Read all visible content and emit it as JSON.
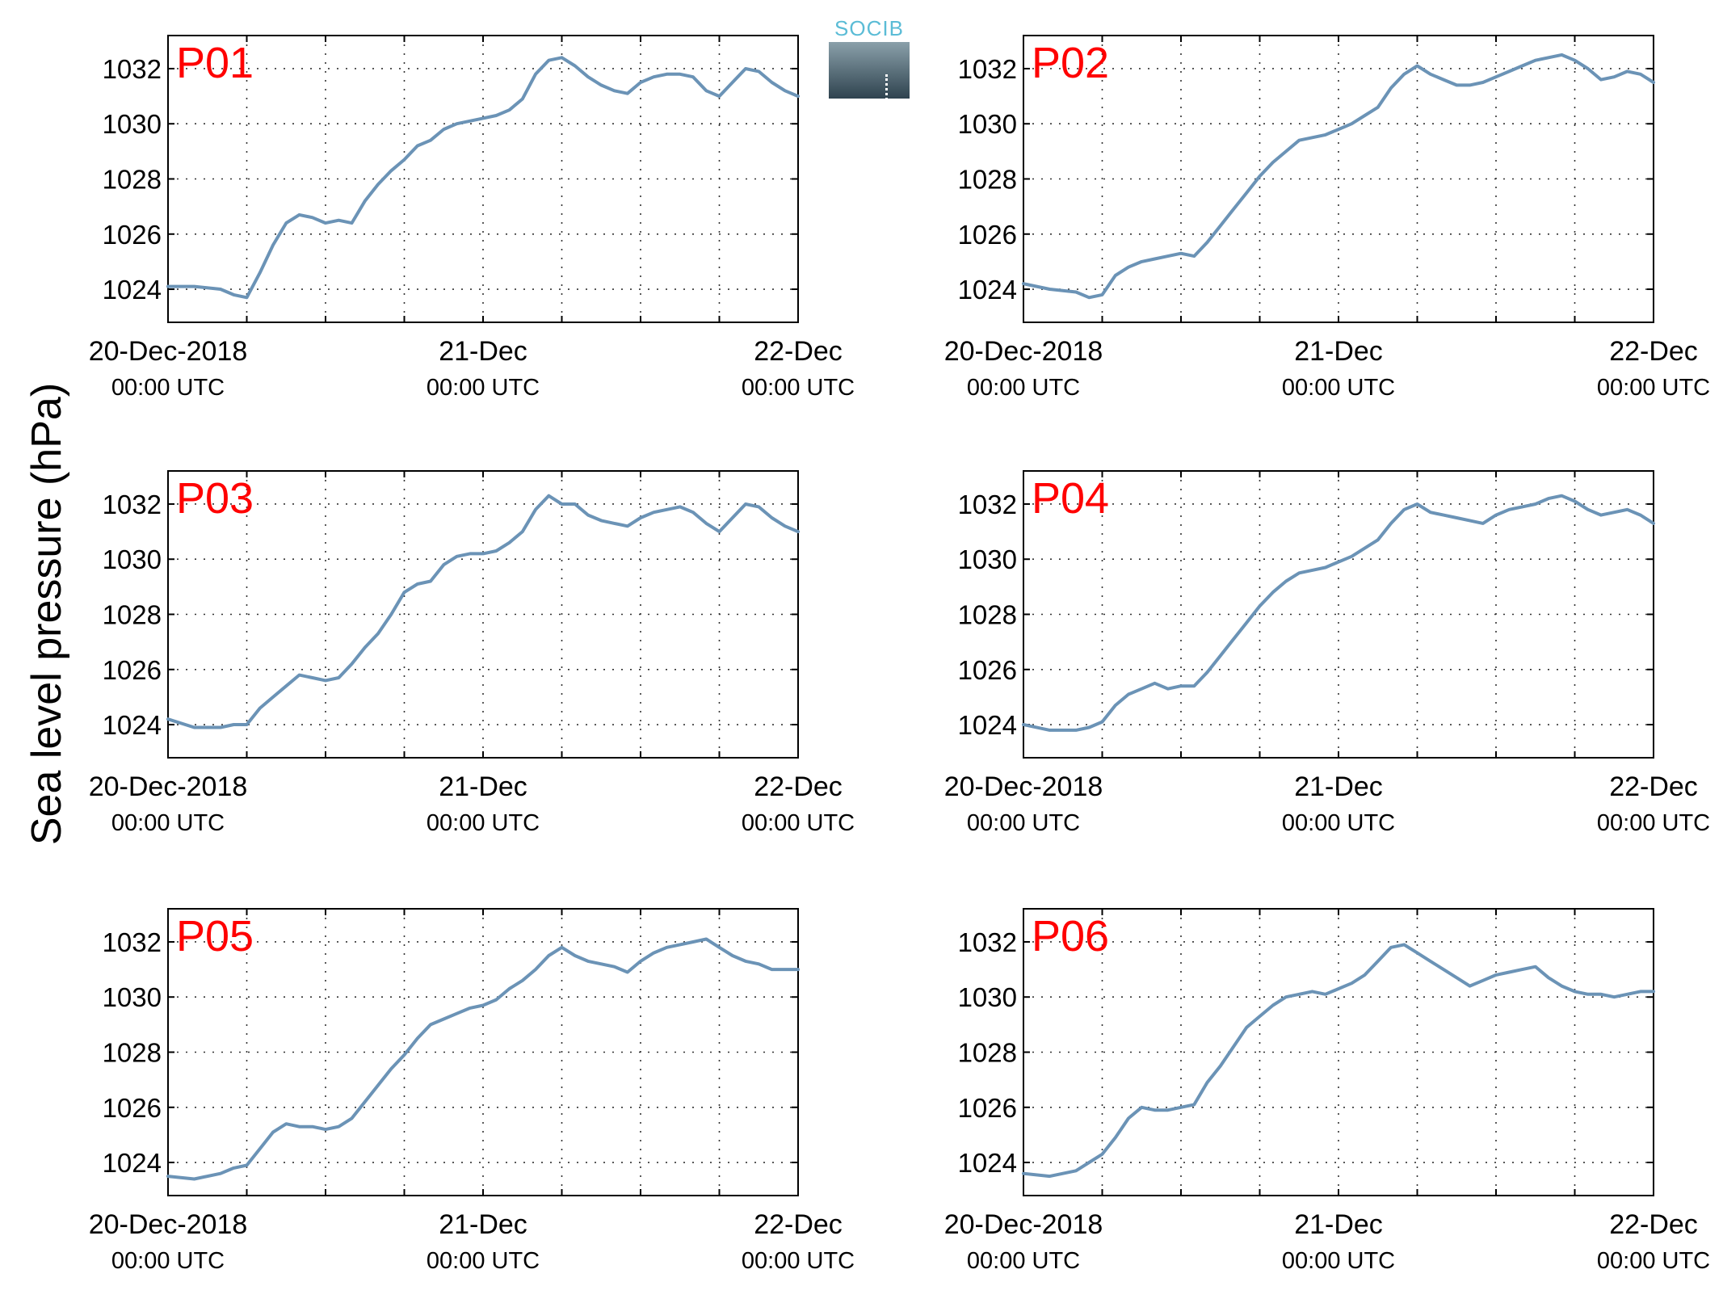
{
  "figure": {
    "ylabel": "Sea level pressure (hPa)",
    "logo_text": "SOCIB",
    "line_color": "#6b93b6",
    "label_color": "#ff0000"
  },
  "chart_data": [
    {
      "type": "line",
      "title": "P01",
      "xlim": [
        0,
        48
      ],
      "ylim": [
        1022.8,
        1033.2
      ],
      "yticks": [
        1024,
        1026,
        1028,
        1030,
        1032
      ],
      "xticklabels": [
        {
          "x": 0,
          "date": "20-Dec-2018",
          "time": "00:00 UTC"
        },
        {
          "x": 24,
          "date": "21-Dec",
          "time": "00:00 UTC"
        },
        {
          "x": 48,
          "date": "22-Dec",
          "time": "00:00 UTC"
        }
      ],
      "grid": true,
      "series": [
        {
          "x": [
            0,
            2,
            4,
            5,
            6,
            7,
            8,
            9,
            10,
            11,
            12,
            13,
            14,
            15,
            16,
            17,
            18,
            19,
            20,
            21,
            22,
            23,
            24,
            25,
            26,
            27,
            28,
            29,
            30,
            31,
            32,
            33,
            34,
            35,
            36,
            37,
            38,
            39,
            40,
            41,
            42,
            43,
            44,
            45,
            46,
            47,
            48
          ],
          "y": [
            1024.1,
            1024.1,
            1024.0,
            1023.8,
            1023.7,
            1024.6,
            1025.6,
            1026.4,
            1026.7,
            1026.6,
            1026.4,
            1026.5,
            1026.4,
            1027.2,
            1027.8,
            1028.3,
            1028.7,
            1029.2,
            1029.4,
            1029.8,
            1030.0,
            1030.1,
            1030.2,
            1030.3,
            1030.5,
            1030.9,
            1031.8,
            1032.3,
            1032.4,
            1032.1,
            1031.7,
            1031.4,
            1031.2,
            1031.1,
            1031.5,
            1031.7,
            1031.8,
            1031.8,
            1031.7,
            1031.2,
            1031.0,
            1031.5,
            1032.0,
            1031.9,
            1031.5,
            1031.2,
            1031.0
          ]
        }
      ]
    },
    {
      "type": "line",
      "title": "P02",
      "xlim": [
        0,
        48
      ],
      "ylim": [
        1022.8,
        1033.2
      ],
      "yticks": [
        1024,
        1026,
        1028,
        1030,
        1032
      ],
      "xticklabels": [
        {
          "x": 0,
          "date": "20-Dec-2018",
          "time": "00:00 UTC"
        },
        {
          "x": 24,
          "date": "21-Dec",
          "time": "00:00 UTC"
        },
        {
          "x": 48,
          "date": "22-Dec",
          "time": "00:00 UTC"
        }
      ],
      "grid": true,
      "series": [
        {
          "x": [
            0,
            2,
            4,
            5,
            6,
            7,
            8,
            9,
            10,
            11,
            12,
            13,
            14,
            15,
            16,
            17,
            18,
            19,
            20,
            21,
            22,
            23,
            24,
            25,
            26,
            27,
            28,
            29,
            30,
            31,
            32,
            33,
            34,
            35,
            36,
            37,
            38,
            39,
            40,
            41,
            42,
            43,
            44,
            45,
            46,
            47,
            48
          ],
          "y": [
            1024.2,
            1024.0,
            1023.9,
            1023.7,
            1023.8,
            1024.5,
            1024.8,
            1025.0,
            1025.1,
            1025.2,
            1025.3,
            1025.2,
            1025.7,
            1026.3,
            1026.9,
            1027.5,
            1028.1,
            1028.6,
            1029.0,
            1029.4,
            1029.5,
            1029.6,
            1029.8,
            1030.0,
            1030.3,
            1030.6,
            1031.3,
            1031.8,
            1032.1,
            1031.8,
            1031.6,
            1031.4,
            1031.4,
            1031.5,
            1031.7,
            1031.9,
            1032.1,
            1032.3,
            1032.4,
            1032.5,
            1032.3,
            1032.0,
            1031.6,
            1031.7,
            1031.9,
            1031.8,
            1031.5
          ]
        }
      ]
    },
    {
      "type": "line",
      "title": "P03",
      "xlim": [
        0,
        48
      ],
      "ylim": [
        1022.8,
        1033.2
      ],
      "yticks": [
        1024,
        1026,
        1028,
        1030,
        1032
      ],
      "xticklabels": [
        {
          "x": 0,
          "date": "20-Dec-2018",
          "time": "00:00 UTC"
        },
        {
          "x": 24,
          "date": "21-Dec",
          "time": "00:00 UTC"
        },
        {
          "x": 48,
          "date": "22-Dec",
          "time": "00:00 UTC"
        }
      ],
      "grid": true,
      "series": [
        {
          "x": [
            0,
            2,
            4,
            5,
            6,
            7,
            8,
            9,
            10,
            11,
            12,
            13,
            14,
            15,
            16,
            17,
            18,
            19,
            20,
            21,
            22,
            23,
            24,
            25,
            26,
            27,
            28,
            29,
            30,
            31,
            32,
            33,
            34,
            35,
            36,
            37,
            38,
            39,
            40,
            41,
            42,
            43,
            44,
            45,
            46,
            47,
            48
          ],
          "y": [
            1024.2,
            1023.9,
            1023.9,
            1024.0,
            1024.0,
            1024.6,
            1025.0,
            1025.4,
            1025.8,
            1025.7,
            1025.6,
            1025.7,
            1026.2,
            1026.8,
            1027.3,
            1028.0,
            1028.8,
            1029.1,
            1029.2,
            1029.8,
            1030.1,
            1030.2,
            1030.2,
            1030.3,
            1030.6,
            1031.0,
            1031.8,
            1032.3,
            1032.0,
            1032.0,
            1031.6,
            1031.4,
            1031.3,
            1031.2,
            1031.5,
            1031.7,
            1031.8,
            1031.9,
            1031.7,
            1031.3,
            1031.0,
            1031.5,
            1032.0,
            1031.9,
            1031.5,
            1031.2,
            1031.0
          ]
        }
      ]
    },
    {
      "type": "line",
      "title": "P04",
      "xlim": [
        0,
        48
      ],
      "ylim": [
        1022.8,
        1033.2
      ],
      "yticks": [
        1024,
        1026,
        1028,
        1030,
        1032
      ],
      "xticklabels": [
        {
          "x": 0,
          "date": "20-Dec-2018",
          "time": "00:00 UTC"
        },
        {
          "x": 24,
          "date": "21-Dec",
          "time": "00:00 UTC"
        },
        {
          "x": 48,
          "date": "22-Dec",
          "time": "00:00 UTC"
        }
      ],
      "grid": true,
      "series": [
        {
          "x": [
            0,
            2,
            4,
            5,
            6,
            7,
            8,
            9,
            10,
            11,
            12,
            13,
            14,
            15,
            16,
            17,
            18,
            19,
            20,
            21,
            22,
            23,
            24,
            25,
            26,
            27,
            28,
            29,
            30,
            31,
            32,
            33,
            34,
            35,
            36,
            37,
            38,
            39,
            40,
            41,
            42,
            43,
            44,
            45,
            46,
            47,
            48
          ],
          "y": [
            1024.0,
            1023.8,
            1023.8,
            1023.9,
            1024.1,
            1024.7,
            1025.1,
            1025.3,
            1025.5,
            1025.3,
            1025.4,
            1025.4,
            1025.9,
            1026.5,
            1027.1,
            1027.7,
            1028.3,
            1028.8,
            1029.2,
            1029.5,
            1029.6,
            1029.7,
            1029.9,
            1030.1,
            1030.4,
            1030.7,
            1031.3,
            1031.8,
            1032.0,
            1031.7,
            1031.6,
            1031.5,
            1031.4,
            1031.3,
            1031.6,
            1031.8,
            1031.9,
            1032.0,
            1032.2,
            1032.3,
            1032.1,
            1031.8,
            1031.6,
            1031.7,
            1031.8,
            1031.6,
            1031.3
          ]
        }
      ]
    },
    {
      "type": "line",
      "title": "P05",
      "xlim": [
        0,
        48
      ],
      "ylim": [
        1022.8,
        1033.2
      ],
      "yticks": [
        1024,
        1026,
        1028,
        1030,
        1032
      ],
      "xticklabels": [
        {
          "x": 0,
          "date": "20-Dec-2018",
          "time": "00:00 UTC"
        },
        {
          "x": 24,
          "date": "21-Dec",
          "time": "00:00 UTC"
        },
        {
          "x": 48,
          "date": "22-Dec",
          "time": "00:00 UTC"
        }
      ],
      "grid": true,
      "series": [
        {
          "x": [
            0,
            2,
            4,
            5,
            6,
            7,
            8,
            9,
            10,
            11,
            12,
            13,
            14,
            15,
            16,
            17,
            18,
            19,
            20,
            21,
            22,
            23,
            24,
            25,
            26,
            27,
            28,
            29,
            30,
            31,
            32,
            33,
            34,
            35,
            36,
            37,
            38,
            39,
            40,
            41,
            42,
            43,
            44,
            45,
            46,
            47,
            48
          ],
          "y": [
            1023.5,
            1023.4,
            1023.6,
            1023.8,
            1023.9,
            1024.5,
            1025.1,
            1025.4,
            1025.3,
            1025.3,
            1025.2,
            1025.3,
            1025.6,
            1026.2,
            1026.8,
            1027.4,
            1027.9,
            1028.5,
            1029.0,
            1029.2,
            1029.4,
            1029.6,
            1029.7,
            1029.9,
            1030.3,
            1030.6,
            1031.0,
            1031.5,
            1031.8,
            1031.5,
            1031.3,
            1031.2,
            1031.1,
            1030.9,
            1031.3,
            1031.6,
            1031.8,
            1031.9,
            1032.0,
            1032.1,
            1031.8,
            1031.5,
            1031.3,
            1031.2,
            1031.0,
            1031.0,
            1031.0
          ]
        }
      ]
    },
    {
      "type": "line",
      "title": "P06",
      "xlim": [
        0,
        48
      ],
      "ylim": [
        1022.8,
        1033.2
      ],
      "yticks": [
        1024,
        1026,
        1028,
        1030,
        1032
      ],
      "xticklabels": [
        {
          "x": 0,
          "date": "20-Dec-2018",
          "time": "00:00 UTC"
        },
        {
          "x": 24,
          "date": "21-Dec",
          "time": "00:00 UTC"
        },
        {
          "x": 48,
          "date": "22-Dec",
          "time": "00:00 UTC"
        }
      ],
      "grid": true,
      "series": [
        {
          "x": [
            0,
            2,
            4,
            5,
            6,
            7,
            8,
            9,
            10,
            11,
            12,
            13,
            14,
            15,
            16,
            17,
            18,
            19,
            20,
            21,
            22,
            23,
            24,
            25,
            26,
            27,
            28,
            29,
            30,
            31,
            32,
            33,
            34,
            35,
            36,
            37,
            38,
            39,
            40,
            41,
            42,
            43,
            44,
            45,
            46,
            47,
            48
          ],
          "y": [
            1023.6,
            1023.5,
            1023.7,
            1024.0,
            1024.3,
            1024.9,
            1025.6,
            1026.0,
            1025.9,
            1025.9,
            1026.0,
            1026.1,
            1026.9,
            1027.5,
            1028.2,
            1028.9,
            1029.3,
            1029.7,
            1030.0,
            1030.1,
            1030.2,
            1030.1,
            1030.3,
            1030.5,
            1030.8,
            1031.3,
            1031.8,
            1031.9,
            1031.6,
            1031.3,
            1031.0,
            1030.7,
            1030.4,
            1030.6,
            1030.8,
            1030.9,
            1031.0,
            1031.1,
            1030.7,
            1030.4,
            1030.2,
            1030.1,
            1030.1,
            1030.0,
            1030.1,
            1030.2,
            1030.2
          ]
        }
      ]
    }
  ]
}
